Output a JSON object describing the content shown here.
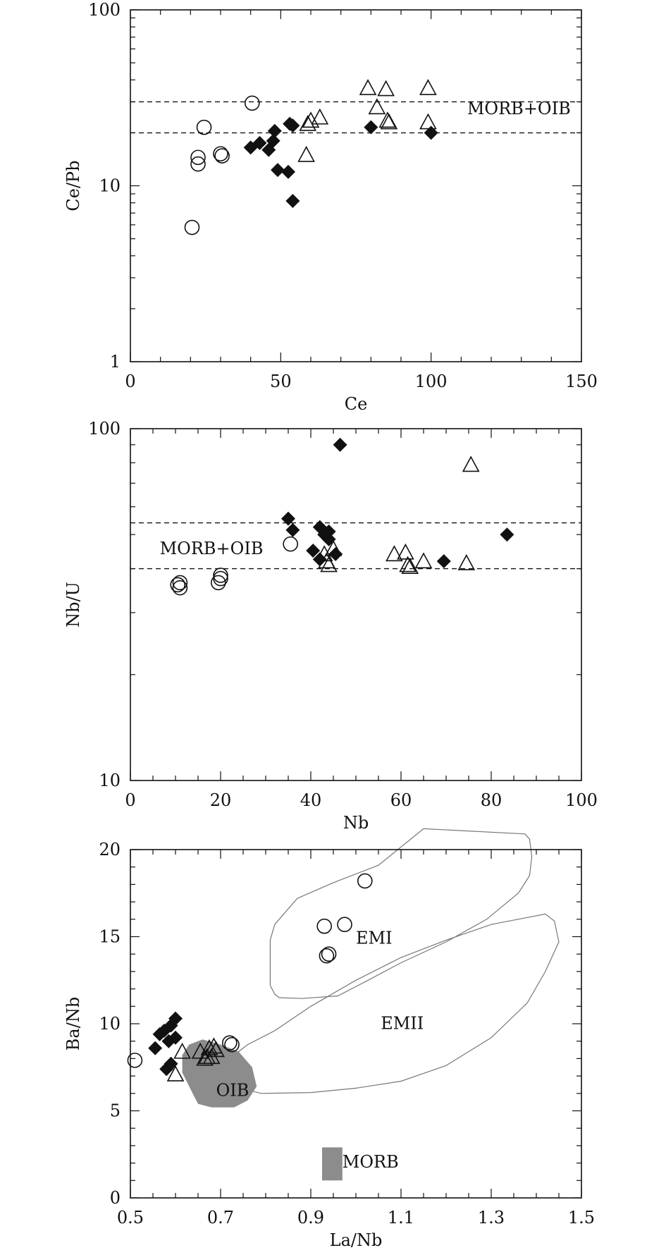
{
  "colors": {
    "ink": "#111111",
    "field_fill": "#8c8c8c",
    "field_outline": "#777777"
  },
  "chart_data": [
    {
      "type": "scatter",
      "title": "",
      "xlabel": "Ce",
      "ylabel": "Ce/Pb",
      "xlim": [
        0,
        150
      ],
      "ylim": [
        1,
        100
      ],
      "y_scale": "log",
      "x_ticks": [
        0,
        50,
        100,
        150
      ],
      "y_ticks": [
        1,
        10,
        100
      ],
      "reference_lines": [
        20,
        30
      ],
      "annotations": [
        {
          "text": "MORB+OIB",
          "x": 112,
          "y": 25.5
        }
      ],
      "series": [
        {
          "marker": "circle-open",
          "points": [
            [
              20.5,
              5.8
            ],
            [
              22.5,
              14.5
            ],
            [
              22.5,
              13.3
            ],
            [
              24.5,
              21.5
            ],
            [
              30,
              15.2
            ],
            [
              30.5,
              14.8
            ],
            [
              40.5,
              29.5
            ]
          ]
        },
        {
          "marker": "diamond-filled",
          "points": [
            [
              40,
              16.5
            ],
            [
              43,
              17.5
            ],
            [
              46,
              16
            ],
            [
              47.5,
              18
            ],
            [
              48,
              20.5
            ],
            [
              49,
              12.3
            ],
            [
              52.5,
              12
            ],
            [
              53,
              22.5
            ],
            [
              54,
              22
            ],
            [
              54,
              8.2
            ],
            [
              80,
              21.5
            ],
            [
              100,
              20
            ]
          ]
        },
        {
          "marker": "triangle-open",
          "points": [
            [
              58.5,
              15
            ],
            [
              59,
              22.5
            ],
            [
              60,
              23.5
            ],
            [
              63,
              24.5
            ],
            [
              79,
              36
            ],
            [
              82,
              28
            ],
            [
              85,
              35.5
            ],
            [
              85.5,
              23.5
            ],
            [
              86,
              23
            ],
            [
              99,
              36
            ],
            [
              99,
              23
            ]
          ]
        }
      ]
    },
    {
      "type": "scatter",
      "title": "",
      "xlabel": "Nb",
      "ylabel": "Nb/U",
      "xlim": [
        0,
        100
      ],
      "ylim": [
        10,
        100
      ],
      "y_scale": "log",
      "x_ticks": [
        0,
        20,
        40,
        60,
        80,
        100
      ],
      "y_ticks": [
        10,
        100
      ],
      "reference_lines": [
        40,
        54
      ],
      "annotations": [
        {
          "text": "MORB+OIB",
          "x": 6.5,
          "y": 44
        }
      ],
      "series": [
        {
          "marker": "circle-open",
          "points": [
            [
              10.5,
              36
            ],
            [
              11,
              36.5
            ],
            [
              11,
              35.3
            ],
            [
              19.5,
              36.5
            ],
            [
              20,
              37.5
            ],
            [
              20,
              38.3
            ],
            [
              35.5,
              47
            ]
          ]
        },
        {
          "marker": "diamond-filled",
          "points": [
            [
              35,
              55.5
            ],
            [
              36,
              51.5
            ],
            [
              40.5,
              45
            ],
            [
              42,
              42.5
            ],
            [
              42,
              52.5
            ],
            [
              43,
              50
            ],
            [
              44,
              51
            ],
            [
              44,
              48.5
            ],
            [
              45.5,
              44
            ],
            [
              46.5,
              90
            ],
            [
              69.5,
              42
            ],
            [
              83.5,
              50
            ]
          ]
        },
        {
          "marker": "triangle-open",
          "points": [
            [
              43,
              44
            ],
            [
              43.5,
              42
            ],
            [
              44,
              41
            ],
            [
              45,
              45.5
            ],
            [
              58.5,
              44
            ],
            [
              61,
              44.5
            ],
            [
              61.5,
              41
            ],
            [
              62,
              40.5
            ],
            [
              65,
              42
            ],
            [
              74.5,
              41.5
            ],
            [
              75.5,
              79
            ]
          ]
        }
      ]
    },
    {
      "type": "scatter",
      "title": "",
      "xlabel": "La/Nb",
      "ylabel": "Ba/Nb",
      "xlim": [
        0.5,
        1.5
      ],
      "ylim": [
        0,
        20
      ],
      "x_ticks": [
        0.5,
        0.7,
        0.9,
        1.1,
        1.3,
        1.5
      ],
      "x_tick_labels": [
        "0.5",
        "0.7",
        "0.9",
        "1.1",
        "1.3",
        "1.5"
      ],
      "y_ticks": [
        0,
        5,
        10,
        15,
        20
      ],
      "fields": [
        {
          "label": "EMI",
          "label_at": [
            1.0,
            14.6
          ],
          "shaded": false,
          "outline": [
            [
              0.81,
              12.2
            ],
            [
              0.82,
              11.7
            ],
            [
              0.83,
              11.5
            ],
            [
              0.88,
              11.45
            ],
            [
              0.96,
              11.6
            ],
            [
              1.02,
              12.4
            ],
            [
              1.1,
              13.5
            ],
            [
              1.2,
              14.7
            ],
            [
              1.29,
              16
            ],
            [
              1.36,
              17.5
            ],
            [
              1.385,
              18.5
            ],
            [
              1.39,
              19.6
            ],
            [
              1.385,
              20.6
            ],
            [
              1.375,
              20.9
            ],
            [
              1.15,
              21.2
            ],
            [
              1.05,
              19.1
            ],
            [
              0.95,
              18.1
            ],
            [
              0.87,
              17.2
            ],
            [
              0.82,
              15.7
            ],
            [
              0.81,
              14.8
            ],
            [
              0.81,
              12.2
            ]
          ]
        },
        {
          "label": "EMII",
          "label_at": [
            1.055,
            9.7
          ],
          "shaded": false,
          "outline": [
            [
              0.73,
              8.2
            ],
            [
              0.76,
              6.2
            ],
            [
              0.79,
              6.0
            ],
            [
              0.9,
              6.05
            ],
            [
              1.0,
              6.3
            ],
            [
              1.1,
              6.7
            ],
            [
              1.2,
              7.6
            ],
            [
              1.3,
              9.2
            ],
            [
              1.38,
              11.2
            ],
            [
              1.42,
              13
            ],
            [
              1.45,
              14.7
            ],
            [
              1.44,
              15.9
            ],
            [
              1.42,
              16.3
            ],
            [
              1.38,
              16.1
            ],
            [
              1.3,
              15.7
            ],
            [
              1.2,
              14.8
            ],
            [
              1.1,
              13.8
            ],
            [
              1.0,
              12.5
            ],
            [
              0.9,
              11
            ],
            [
              0.82,
              9.6
            ],
            [
              0.76,
              8.8
            ],
            [
              0.73,
              8.2
            ]
          ]
        },
        {
          "label": "OIB",
          "label_at": [
            0.69,
            5.85
          ],
          "shaded": true,
          "outline": [
            [
              0.64,
              5.9
            ],
            [
              0.65,
              5.4
            ],
            [
              0.68,
              5.2
            ],
            [
              0.73,
              5.2
            ],
            [
              0.76,
              5.6
            ],
            [
              0.78,
              6.4
            ],
            [
              0.77,
              7.5
            ],
            [
              0.74,
              8.4
            ],
            [
              0.7,
              8.8
            ],
            [
              0.66,
              9.1
            ],
            [
              0.63,
              8.8
            ],
            [
              0.615,
              8.2
            ],
            [
              0.615,
              7.2
            ],
            [
              0.64,
              5.9
            ]
          ]
        },
        {
          "label": "MORB",
          "label_at": [
            0.97,
            1.75
          ],
          "shaded": true,
          "outline": [
            [
              0.925,
              1.0
            ],
            [
              0.97,
              1.0
            ],
            [
              0.97,
              2.9
            ],
            [
              0.925,
              2.9
            ]
          ]
        }
      ],
      "series": [
        {
          "marker": "circle-open",
          "points": [
            [
              0.51,
              7.9
            ],
            [
              0.72,
              8.9
            ],
            [
              0.725,
              8.8
            ],
            [
              0.93,
              15.6
            ],
            [
              0.935,
              13.9
            ],
            [
              0.94,
              14.0
            ],
            [
              0.975,
              15.7
            ],
            [
              1.02,
              18.2
            ]
          ]
        },
        {
          "marker": "diamond-filled",
          "points": [
            [
              0.555,
              8.6
            ],
            [
              0.565,
              9.4
            ],
            [
              0.575,
              9.6
            ],
            [
              0.58,
              7.4
            ],
            [
              0.585,
              9.0
            ],
            [
              0.59,
              9.9
            ],
            [
              0.59,
              7.7
            ],
            [
              0.6,
              10.3
            ],
            [
              0.6,
              9.2
            ]
          ]
        },
        {
          "marker": "triangle-open",
          "points": [
            [
              0.6,
              7.1
            ],
            [
              0.615,
              8.4
            ],
            [
              0.655,
              8.4
            ],
            [
              0.665,
              8.0
            ],
            [
              0.67,
              8.1
            ],
            [
              0.675,
              8.6
            ],
            [
              0.68,
              8.1
            ],
            [
              0.685,
              8.7
            ],
            [
              0.69,
              8.5
            ]
          ]
        }
      ]
    }
  ]
}
